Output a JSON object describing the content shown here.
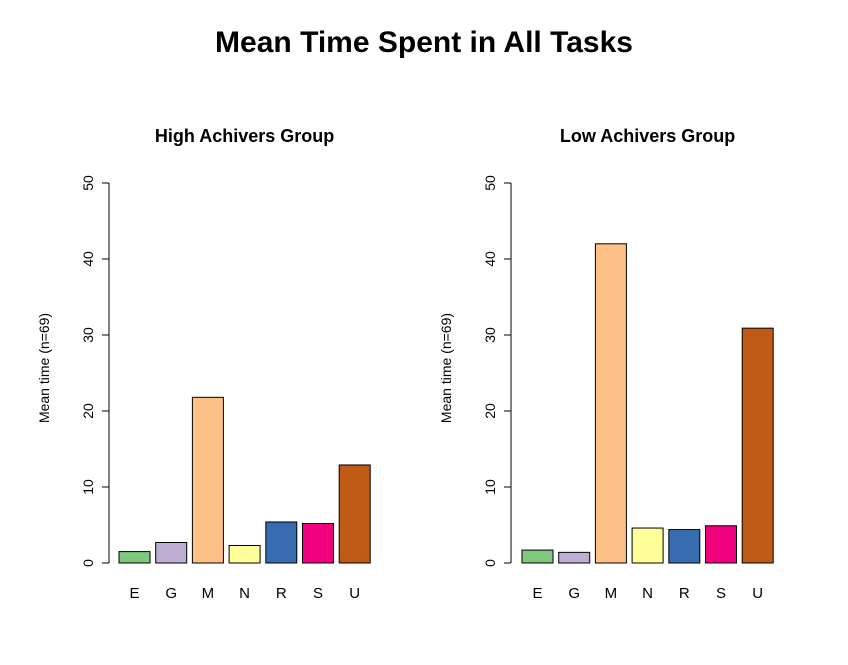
{
  "figure": {
    "title": "Mean Time Spent in All Tasks"
  },
  "chart_data": [
    {
      "type": "bar",
      "title": "High Achivers Group",
      "xlabel": "",
      "ylabel": "Mean time (n=69)",
      "categories": [
        "E",
        "G",
        "M",
        "N",
        "R",
        "S",
        "U"
      ],
      "values": [
        1.5,
        2.7,
        21.8,
        2.3,
        5.4,
        5.2,
        12.9
      ],
      "colors": [
        "#7fc97f",
        "#beaed4",
        "#fdc086",
        "#ffff99",
        "#386cb0",
        "#f0027f",
        "#bf5b17"
      ],
      "ylim": [
        0,
        50
      ],
      "yticks": [
        0,
        10,
        20,
        30,
        40,
        50
      ],
      "grid": false,
      "legend": "none"
    },
    {
      "type": "bar",
      "title": "Low Achivers Group",
      "xlabel": "",
      "ylabel": "Mean time (n=69)",
      "categories": [
        "E",
        "G",
        "M",
        "N",
        "R",
        "S",
        "U"
      ],
      "values": [
        1.7,
        1.4,
        42.0,
        4.6,
        4.4,
        4.9,
        30.9
      ],
      "colors": [
        "#7fc97f",
        "#beaed4",
        "#fdc086",
        "#ffff99",
        "#386cb0",
        "#f0027f",
        "#bf5b17"
      ],
      "ylim": [
        0,
        50
      ],
      "yticks": [
        0,
        10,
        20,
        30,
        40,
        50
      ],
      "grid": false,
      "legend": "none"
    }
  ]
}
